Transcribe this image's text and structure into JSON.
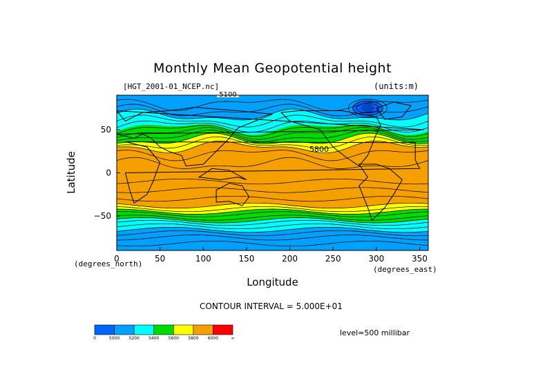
{
  "chart_data": {
    "type": "heatmap",
    "title": "Monthly Mean Geopotential height",
    "source_label": "[HGT_2001-01_NCEP.nc]",
    "units_label": "(units:m)",
    "xlabel": "Longitude",
    "ylabel": "Latitude",
    "x_unit_label": "(degrees_east)",
    "y_unit_label": "(degrees_north)",
    "xlim": [
      0,
      360
    ],
    "ylim": [
      -90,
      90
    ],
    "x_ticks": [
      0,
      50,
      100,
      150,
      200,
      250,
      300,
      350
    ],
    "y_ticks": [
      -50,
      0,
      50
    ],
    "y_tick_labels": [
      "−50",
      "0",
      "50"
    ],
    "contour_interval_text": "CONTOUR INTERVAL = 5.000E+01",
    "level_text": "level=500 millibar",
    "contour_labels": [
      "5100",
      "5800"
    ],
    "colorbar": {
      "levels": [
        "0",
        "5000",
        "5200",
        "5400",
        "5600",
        "5800",
        "6000",
        "∞"
      ],
      "colors": [
        "#0064ff",
        "#00a0ff",
        "#00ffff",
        "#00dc00",
        "#ffff00",
        "#f5a000",
        "#ff0000"
      ]
    },
    "bands": [
      {
        "lat": [
          -90,
          -66
        ],
        "color": "#00a0ff"
      },
      {
        "lat": [
          -66,
          -55
        ],
        "color": "#00ffff"
      },
      {
        "lat": [
          -55,
          -45
        ],
        "color": "#00dc00"
      },
      {
        "lat": [
          -45,
          -38
        ],
        "color": "#ffff00"
      },
      {
        "lat": [
          -38,
          30
        ],
        "color": "#f5a000"
      },
      {
        "lat": [
          30,
          38
        ],
        "color": "#ffff00"
      },
      {
        "lat": [
          38,
          52
        ],
        "color": "#00dc00"
      },
      {
        "lat": [
          52,
          66
        ],
        "color": "#00ffff"
      },
      {
        "lat": [
          66,
          90
        ],
        "color": "#00a0ff"
      }
    ],
    "low_center": {
      "lon": 290,
      "lat": 75,
      "color": "#0064ff"
    }
  }
}
